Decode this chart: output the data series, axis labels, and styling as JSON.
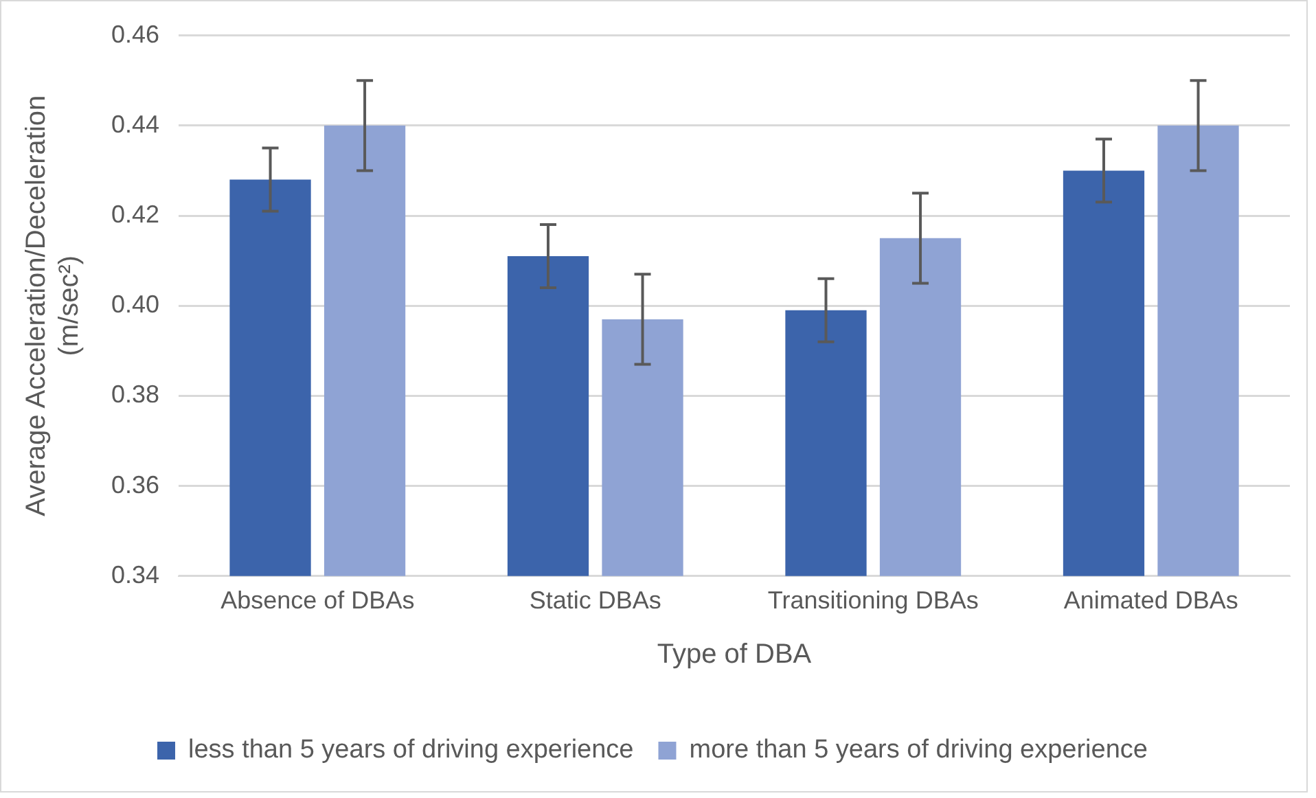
{
  "chart_data": {
    "type": "bar",
    "xlabel": "Type of DBA",
    "ylabel": "Average Acceleration/Deceleration (m/sec²)",
    "categories": [
      "Absence of DBAs",
      "Static DBAs",
      "Transitioning DBAs",
      "Animated DBAs"
    ],
    "series": [
      {
        "name": "less than 5 years of driving experience",
        "color": "#3c64ab",
        "values": [
          0.428,
          0.411,
          0.399,
          0.43
        ],
        "errors": [
          0.007,
          0.007,
          0.007,
          0.007
        ]
      },
      {
        "name": "more than 5 years of driving experience",
        "color": "#8fa3d4",
        "values": [
          0.44,
          0.397,
          0.415,
          0.44
        ],
        "errors": [
          0.01,
          0.01,
          0.01,
          0.01
        ]
      }
    ],
    "ylim": [
      0.34,
      0.46
    ],
    "yticks": [
      {
        "value": 0.34,
        "label": "0.34"
      },
      {
        "value": 0.36,
        "label": "0.36"
      },
      {
        "value": 0.38,
        "label": "0.38"
      },
      {
        "value": 0.4,
        "label": "0.40"
      },
      {
        "value": 0.42,
        "label": "0.42"
      },
      {
        "value": 0.44,
        "label": "0.44"
      },
      {
        "value": 0.46,
        "label": "0.46"
      }
    ],
    "grid": "y",
    "legend": "bottom"
  }
}
